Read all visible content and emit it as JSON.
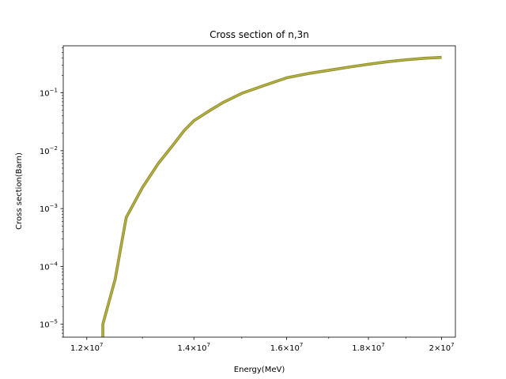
{
  "chart_data": {
    "type": "line",
    "title": "Cross section of n,3n",
    "xlabel": "Energy(MeV)",
    "ylabel": "Cross section(Barn)",
    "x_scale": "log",
    "y_scale": "log",
    "xlim": [
      11600000,
      20400000
    ],
    "ylim": [
      6e-06,
      0.65
    ],
    "grid": false,
    "line_colors": [
      "#8c8a2a",
      "#b9b545"
    ],
    "x_ticks": [
      {
        "value": 12000000,
        "mant": "1.2",
        "exp": "7"
      },
      {
        "value": 14000000,
        "mant": "1.4",
        "exp": "7"
      },
      {
        "value": 16000000,
        "mant": "1.6",
        "exp": "7"
      },
      {
        "value": 18000000,
        "mant": "1.8",
        "exp": "7"
      },
      {
        "value": 20000000,
        "mant": "2",
        "exp": "7"
      }
    ],
    "y_ticks": [
      {
        "value": 1e-05,
        "exp": "−5"
      },
      {
        "value": 0.0001,
        "exp": "−4"
      },
      {
        "value": 0.001,
        "exp": "−3"
      },
      {
        "value": 0.01,
        "exp": "−2"
      },
      {
        "value": 0.1,
        "exp": "−1"
      }
    ],
    "series": [
      {
        "x": [
          12280000,
          12280000,
          12500000,
          12700000,
          13000000,
          13300000,
          13600000,
          13800000,
          14000000,
          14300000,
          14600000,
          15000000,
          15500000,
          16000000,
          16500000,
          17000000,
          17500000,
          18000000,
          18500000,
          19000000,
          19500000,
          20000000
        ],
        "y": [
          5e-06,
          1e-05,
          6e-05,
          0.0007,
          0.0023,
          0.006,
          0.013,
          0.022,
          0.033,
          0.048,
          0.068,
          0.098,
          0.135,
          0.182,
          0.215,
          0.245,
          0.278,
          0.312,
          0.345,
          0.372,
          0.395,
          0.41
        ]
      }
    ]
  }
}
